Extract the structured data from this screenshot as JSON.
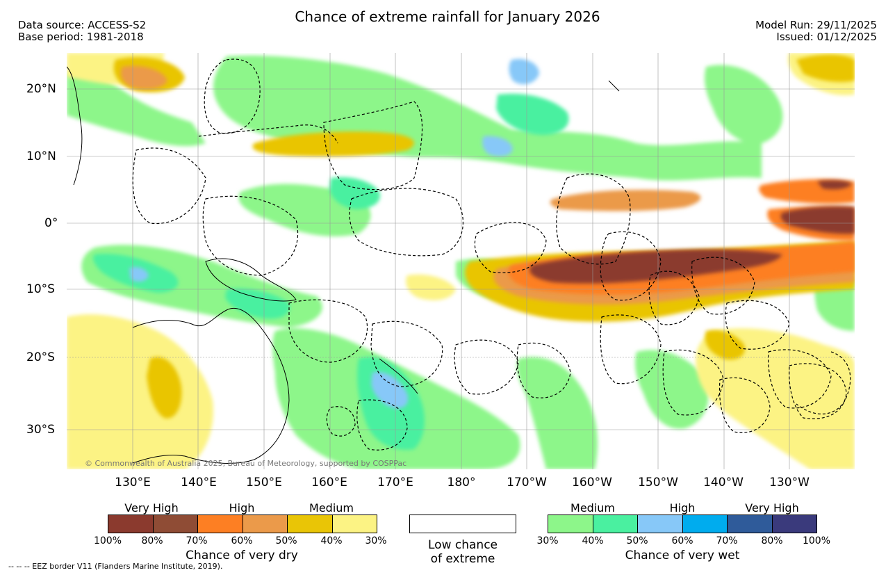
{
  "header": {
    "title": "Chance of extreme rainfall for January 2026",
    "data_source": "Data source: ACCESS-S2",
    "base_period": "Base period: 1981-2018",
    "model_run": "Model Run: 29/11/2025",
    "issued": "Issued: 01/12/2025"
  },
  "map": {
    "lat_labels": [
      "20°N",
      "10°N",
      "0°",
      "10°S",
      "20°S",
      "30°S"
    ],
    "lon_labels": [
      "130°E",
      "140°E",
      "150°E",
      "160°E",
      "170°E",
      "180°",
      "170°W",
      "160°W",
      "150°W",
      "140°W",
      "130°W"
    ],
    "copyright": "© Commonwealth of Australia 2025, Bureau of Meteorology, supported by COSPPac",
    "eez_note": "-- -- -- EEZ border V11 (Flanders Marine Institute, 2019)."
  },
  "legend": {
    "dry": {
      "categories": [
        "Very High",
        "High",
        "Medium"
      ],
      "ticks": [
        "100%",
        "80%",
        "70%",
        "60%",
        "50%",
        "40%",
        "30%"
      ],
      "colors": [
        "#8b3a2e",
        "#8f4c35",
        "#fd7f23",
        "#eb9a4a",
        "#e9c506",
        "#fcf384"
      ],
      "title": "Chance of very dry"
    },
    "low": {
      "line1": "Low chance",
      "line2": "of extreme"
    },
    "wet": {
      "categories": [
        "Medium",
        "High",
        "Very High"
      ],
      "ticks": [
        "30%",
        "40%",
        "50%",
        "60%",
        "70%",
        "80%",
        "100%"
      ],
      "colors": [
        "#8df68a",
        "#4af0a0",
        "#87c8f8",
        "#00acee",
        "#2f5b9a",
        "#3a3a7c"
      ],
      "title": "Chance of very wet"
    }
  }
}
